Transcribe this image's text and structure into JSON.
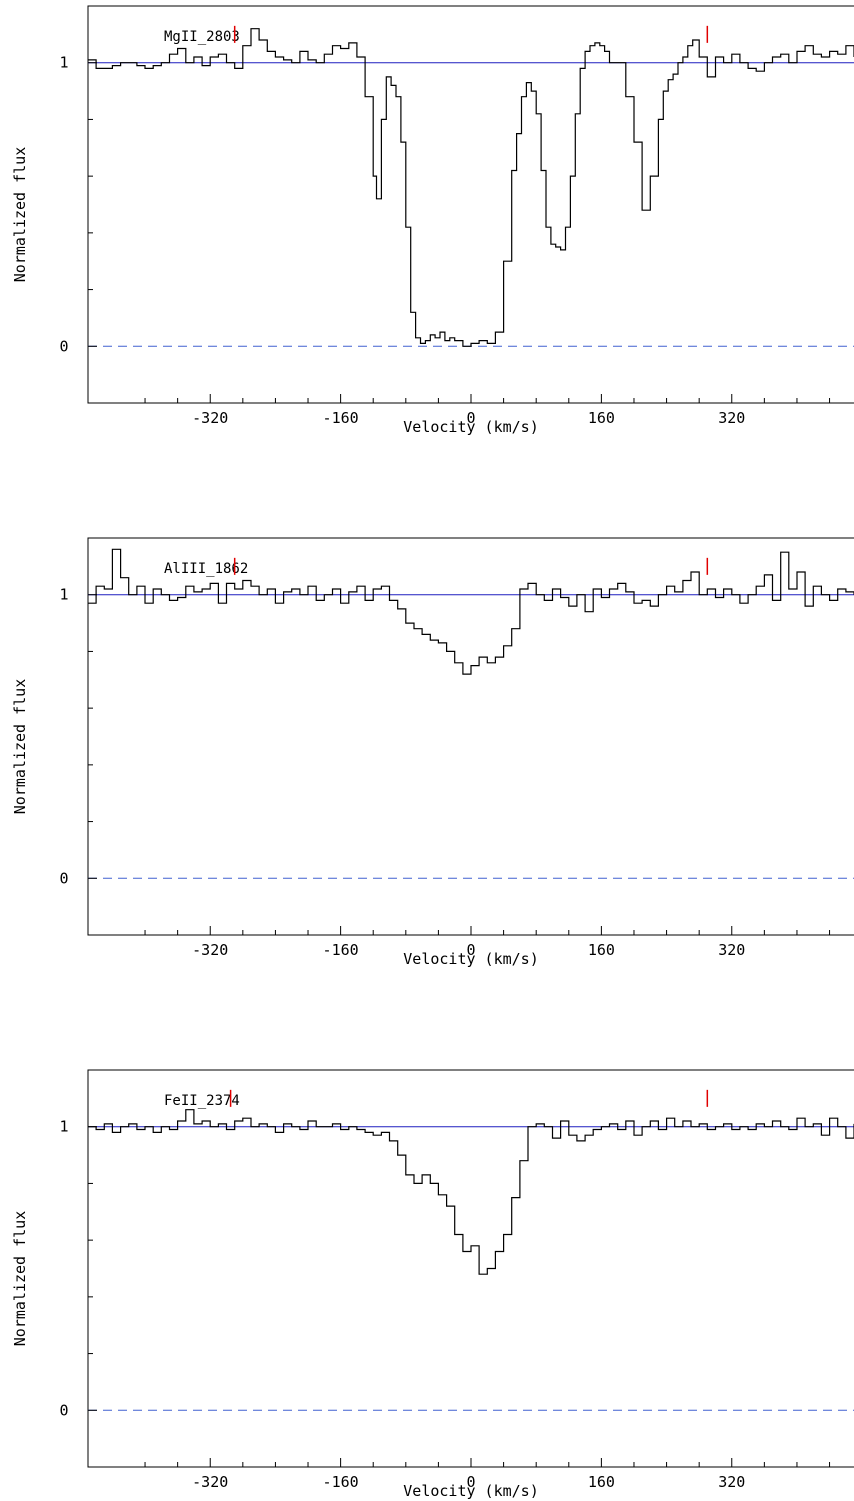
{
  "chart_data": [
    {
      "type": "line",
      "ion_label": "MgII_2803",
      "xlabel": "Velocity (km/s)",
      "ylabel": "Normalized flux",
      "xlim": [
        -470,
        470
      ],
      "ylim": [
        -0.2,
        1.2
      ],
      "x_ticks": [
        -320,
        -160,
        0,
        160,
        320
      ],
      "y_tick_labels": [
        {
          "value": 0,
          "label": "0"
        },
        {
          "value": 1,
          "label": "1"
        }
      ],
      "y_minor_ticks": [
        0.2,
        0.4,
        0.6,
        0.8
      ],
      "continuum": 1,
      "zero_level": 0,
      "component_markers": [
        -290,
        290
      ],
      "colors": {
        "spectrum": "#000000",
        "continuum": "#1f1fbf",
        "zero_line": "#4060d0",
        "markers": "#e00000"
      },
      "series": [
        {
          "x": [
            -470,
            -460,
            -450,
            -440,
            -430,
            -420,
            -410,
            -400,
            -390,
            -380,
            -370,
            -360,
            -350,
            -340,
            -330,
            -320,
            -310,
            -300,
            -290,
            -280,
            -270,
            -260,
            -250,
            -240,
            -230,
            -220,
            -210,
            -200,
            -190,
            -180,
            -170,
            -160,
            -150,
            -140,
            -130,
            -120,
            -116,
            -110,
            -104,
            -98,
            -92,
            -86,
            -80,
            -74,
            -68,
            -62,
            -56,
            -50,
            -44,
            -38,
            -32,
            -26,
            -20,
            -10,
            0,
            10,
            20,
            30,
            40,
            50,
            56,
            62,
            68,
            74,
            80,
            86,
            92,
            98,
            104,
            110,
            116,
            122,
            128,
            134,
            140,
            146,
            152,
            158,
            164,
            170,
            180,
            190,
            200,
            210,
            220,
            230,
            236,
            242,
            248,
            254,
            260,
            266,
            272,
            280,
            290,
            300,
            310,
            320,
            330,
            340,
            350,
            360,
            370,
            380,
            390,
            400,
            410,
            420,
            430,
            440,
            450,
            460,
            470
          ],
          "y": [
            1.01,
            0.98,
            0.98,
            0.99,
            1.0,
            1.0,
            0.99,
            0.98,
            0.99,
            1.0,
            1.03,
            1.05,
            1.0,
            1.02,
            0.99,
            1.02,
            1.03,
            1.0,
            0.98,
            1.06,
            1.12,
            1.08,
            1.04,
            1.02,
            1.01,
            1.0,
            1.04,
            1.01,
            1.0,
            1.03,
            1.06,
            1.05,
            1.07,
            1.02,
            0.88,
            0.6,
            0.52,
            0.8,
            0.95,
            0.92,
            0.88,
            0.72,
            0.42,
            0.12,
            0.03,
            0.01,
            0.02,
            0.04,
            0.03,
            0.05,
            0.02,
            0.03,
            0.02,
            0.0,
            0.01,
            0.02,
            0.01,
            0.05,
            0.3,
            0.62,
            0.75,
            0.88,
            0.93,
            0.9,
            0.82,
            0.62,
            0.42,
            0.36,
            0.35,
            0.34,
            0.42,
            0.6,
            0.82,
            0.98,
            1.04,
            1.06,
            1.07,
            1.06,
            1.04,
            1.0,
            1.0,
            0.88,
            0.72,
            0.48,
            0.6,
            0.8,
            0.9,
            0.94,
            0.96,
            1.0,
            1.02,
            1.06,
            1.08,
            1.02,
            0.95,
            1.02,
            1.0,
            1.03,
            1.0,
            0.98,
            0.97,
            1.0,
            1.02,
            1.03,
            1.0,
            1.04,
            1.06,
            1.03,
            1.02,
            1.04,
            1.03,
            1.06,
            1.02
          ]
        }
      ]
    },
    {
      "type": "line",
      "ion_label": "AlIII_1862",
      "xlabel": "Velocity (km/s)",
      "ylabel": "Normalized flux",
      "xlim": [
        -470,
        470
      ],
      "ylim": [
        -0.2,
        1.2
      ],
      "x_ticks": [
        -320,
        -160,
        0,
        160,
        320
      ],
      "y_tick_labels": [
        {
          "value": 0,
          "label": "0"
        },
        {
          "value": 1,
          "label": "1"
        }
      ],
      "y_minor_ticks": [
        0.2,
        0.4,
        0.6,
        0.8
      ],
      "continuum": 1,
      "zero_level": 0,
      "component_markers": [
        -290,
        290
      ],
      "colors": {
        "spectrum": "#000000",
        "continuum": "#1f1fbf",
        "zero_line": "#4060d0",
        "markers": "#e00000"
      },
      "series": [
        {
          "x": [
            -470,
            -460,
            -450,
            -440,
            -430,
            -420,
            -410,
            -400,
            -390,
            -380,
            -370,
            -360,
            -350,
            -340,
            -330,
            -320,
            -310,
            -300,
            -290,
            -280,
            -270,
            -260,
            -250,
            -240,
            -230,
            -220,
            -210,
            -200,
            -190,
            -180,
            -170,
            -160,
            -150,
            -140,
            -130,
            -120,
            -110,
            -100,
            -90,
            -80,
            -70,
            -60,
            -50,
            -40,
            -30,
            -20,
            -10,
            0,
            10,
            20,
            30,
            40,
            50,
            60,
            70,
            80,
            90,
            100,
            110,
            120,
            130,
            140,
            150,
            160,
            170,
            180,
            190,
            200,
            210,
            220,
            230,
            240,
            250,
            260,
            270,
            280,
            290,
            300,
            310,
            320,
            330,
            340,
            350,
            360,
            370,
            380,
            390,
            400,
            410,
            420,
            430,
            440,
            450,
            460,
            470
          ],
          "y": [
            0.97,
            1.03,
            1.02,
            1.16,
            1.06,
            1.0,
            1.03,
            0.97,
            1.02,
            1.0,
            0.98,
            0.99,
            1.03,
            1.01,
            1.02,
            1.04,
            0.97,
            1.04,
            1.02,
            1.05,
            1.03,
            1.0,
            1.02,
            0.97,
            1.01,
            1.02,
            1.0,
            1.03,
            0.98,
            1.0,
            1.02,
            0.97,
            1.01,
            1.03,
            0.98,
            1.02,
            1.03,
            0.98,
            0.95,
            0.9,
            0.88,
            0.86,
            0.84,
            0.83,
            0.8,
            0.76,
            0.72,
            0.75,
            0.78,
            0.76,
            0.78,
            0.82,
            0.88,
            1.02,
            1.04,
            1.0,
            0.98,
            1.02,
            0.99,
            0.96,
            1.0,
            0.94,
            1.02,
            0.99,
            1.02,
            1.04,
            1.01,
            0.97,
            0.98,
            0.96,
            1.0,
            1.03,
            1.01,
            1.05,
            1.08,
            1.0,
            1.02,
            0.99,
            1.02,
            1.0,
            0.97,
            1.0,
            1.03,
            1.07,
            0.98,
            1.15,
            1.02,
            1.08,
            0.96,
            1.03,
            1.0,
            0.98,
            1.02,
            1.01,
            1.0
          ]
        }
      ]
    },
    {
      "type": "line",
      "ion_label": "FeII_2374",
      "xlabel": "Velocity (km/s)",
      "ylabel": "Normalized flux",
      "xlim": [
        -470,
        470
      ],
      "ylim": [
        -0.2,
        1.2
      ],
      "x_ticks": [
        -320,
        -160,
        0,
        160,
        320
      ],
      "y_tick_labels": [
        {
          "value": 0,
          "label": "0"
        },
        {
          "value": 1,
          "label": "1"
        }
      ],
      "y_minor_ticks": [
        0.2,
        0.4,
        0.6,
        0.8
      ],
      "continuum": 1,
      "zero_level": 0,
      "component_markers": [
        -295,
        290
      ],
      "colors": {
        "spectrum": "#000000",
        "continuum": "#1f1fbf",
        "zero_line": "#4060d0",
        "markers": "#e00000"
      },
      "series": [
        {
          "x": [
            -470,
            -460,
            -450,
            -440,
            -430,
            -420,
            -410,
            -400,
            -390,
            -380,
            -370,
            -360,
            -350,
            -340,
            -330,
            -320,
            -310,
            -300,
            -290,
            -280,
            -270,
            -260,
            -250,
            -240,
            -230,
            -220,
            -210,
            -200,
            -190,
            -180,
            -170,
            -160,
            -150,
            -140,
            -130,
            -120,
            -110,
            -100,
            -90,
            -80,
            -70,
            -60,
            -50,
            -40,
            -30,
            -20,
            -10,
            0,
            10,
            20,
            30,
            40,
            50,
            60,
            70,
            80,
            90,
            100,
            110,
            120,
            130,
            140,
            150,
            160,
            170,
            180,
            190,
            200,
            210,
            220,
            230,
            240,
            250,
            260,
            270,
            280,
            290,
            300,
            310,
            320,
            330,
            340,
            350,
            360,
            370,
            380,
            390,
            400,
            410,
            420,
            430,
            440,
            450,
            460,
            470
          ],
          "y": [
            1.0,
            0.99,
            1.01,
            0.98,
            1.0,
            1.01,
            0.99,
            1.0,
            0.98,
            1.0,
            0.99,
            1.02,
            1.06,
            1.01,
            1.02,
            1.0,
            1.01,
            0.99,
            1.02,
            1.03,
            1.0,
            1.01,
            1.0,
            0.98,
            1.01,
            1.0,
            0.99,
            1.02,
            1.0,
            1.0,
            1.01,
            0.99,
            1.0,
            0.99,
            0.98,
            0.97,
            0.98,
            0.95,
            0.9,
            0.83,
            0.8,
            0.83,
            0.8,
            0.76,
            0.72,
            0.62,
            0.56,
            0.58,
            0.48,
            0.5,
            0.56,
            0.62,
            0.75,
            0.88,
            1.0,
            1.01,
            1.0,
            0.96,
            1.02,
            0.97,
            0.95,
            0.97,
            0.99,
            1.0,
            1.01,
            0.99,
            1.02,
            0.97,
            1.0,
            1.02,
            0.99,
            1.03,
            1.0,
            1.02,
            1.0,
            1.01,
            0.99,
            1.0,
            1.01,
            0.99,
            1.0,
            0.99,
            1.01,
            1.0,
            1.02,
            1.0,
            0.99,
            1.03,
            1.0,
            1.01,
            0.97,
            1.03,
            1.0,
            0.96,
            1.01
          ]
        }
      ]
    }
  ]
}
